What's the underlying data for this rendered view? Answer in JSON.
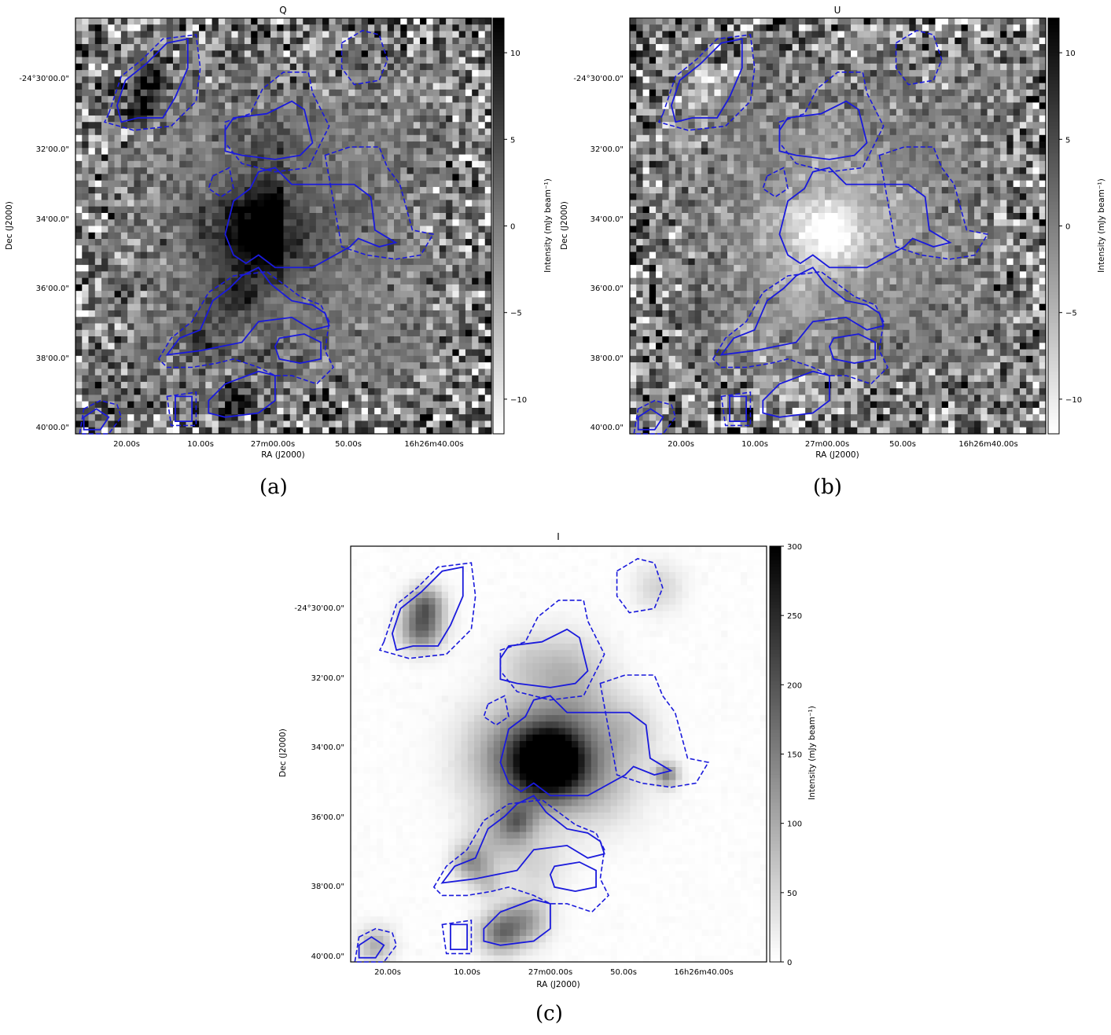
{
  "figure": {
    "panels": [
      {
        "id": "a",
        "title": "Q",
        "caption": "(a)",
        "xlabel": "RA (J2000)",
        "ylabel": "Dec (J2000)",
        "colorbar_label": "Intensity (mJy beam⁻¹)",
        "colorbar_ticks": [
          "10",
          "5",
          "0",
          "−5",
          "−10"
        ],
        "colorbar_values": [
          10,
          5,
          0,
          -5,
          -10
        ],
        "colorbar_range": [
          -12,
          12
        ],
        "x_ticks": [
          "20.00s",
          "10.00s",
          "27m00.00s",
          "50.00s",
          "16h26m40.00s"
        ],
        "y_ticks": [
          "-24°30'00.0\"",
          "32'00.0\"",
          "34'00.0\"",
          "36'00.0\"",
          "38'00.0\"",
          "40'00.0\""
        ],
        "map_style": "noise",
        "contour_color": "#1a1adc"
      },
      {
        "id": "b",
        "title": "U",
        "caption": "(b)",
        "xlabel": "RA (J2000)",
        "ylabel": "Dec (J2000)",
        "colorbar_label": "Intensity (mJy beam⁻¹)",
        "colorbar_ticks": [
          "10",
          "5",
          "0",
          "−5",
          "−10"
        ],
        "colorbar_values": [
          10,
          5,
          0,
          -5,
          -10
        ],
        "colorbar_range": [
          -12,
          12
        ],
        "x_ticks": [
          "20.00s",
          "10.00s",
          "27m00.00s",
          "50.00s",
          "16h26m40.00s"
        ],
        "y_ticks": [
          "-24°30'00.0\"",
          "32'00.0\"",
          "34'00.0\"",
          "36'00.0\"",
          "38'00.0\"",
          "40'00.0\""
        ],
        "map_style": "noise",
        "contour_color": "#1a1adc"
      },
      {
        "id": "c",
        "title": "I",
        "caption": "(c)",
        "xlabel": "RA (J2000)",
        "ylabel": "Dec (J2000)",
        "colorbar_label": "Intensity (mJy beam⁻¹)",
        "colorbar_ticks": [
          "300",
          "250",
          "200",
          "150",
          "100",
          "50",
          "0"
        ],
        "colorbar_values": [
          300,
          250,
          200,
          150,
          100,
          50,
          0
        ],
        "colorbar_range": [
          0,
          300
        ],
        "x_ticks": [
          "20.00s",
          "10.00s",
          "27m00.00s",
          "50.00s",
          "16h26m40.00s"
        ],
        "y_ticks": [
          "-24°30'00.0\"",
          "32'00.0\"",
          "34'00.0\"",
          "36'00.0\"",
          "38'00.0\"",
          "40'00.0\""
        ],
        "map_style": "intensity",
        "contour_color": "#1a1adc"
      }
    ]
  }
}
